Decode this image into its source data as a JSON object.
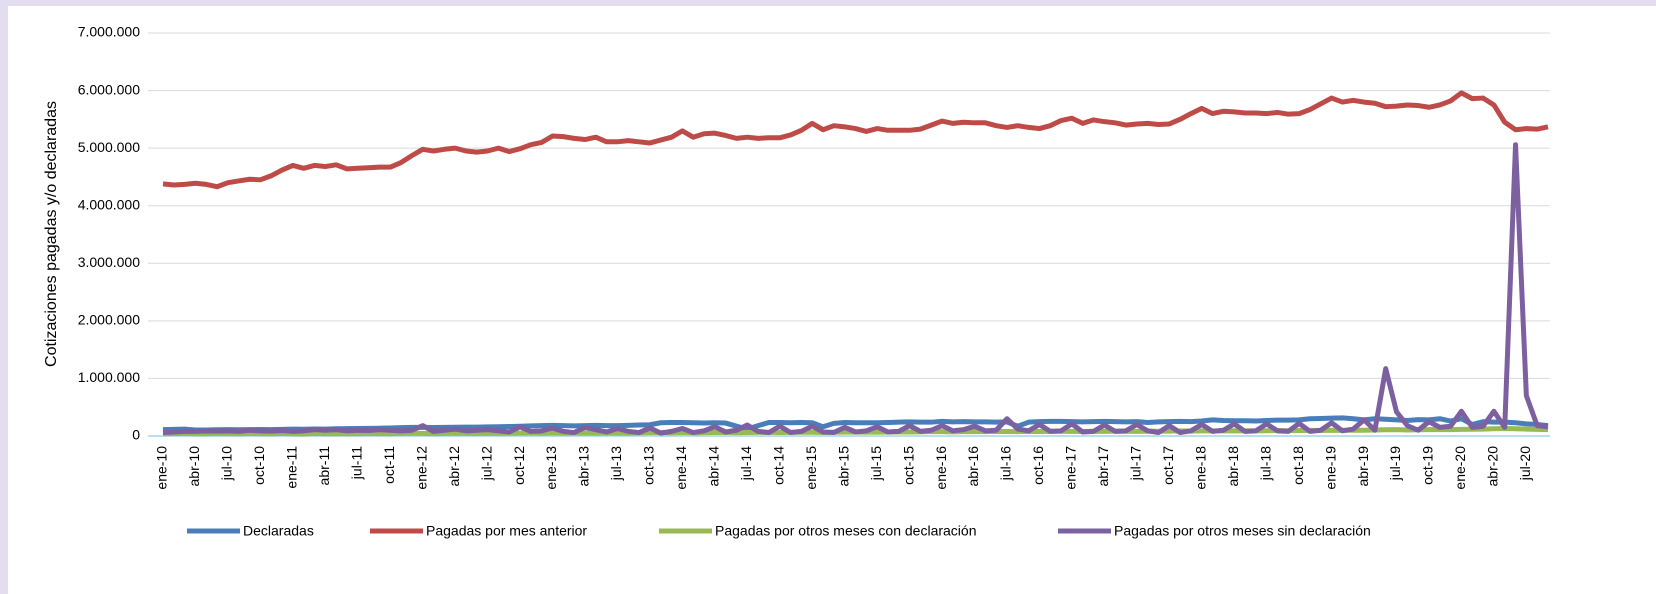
{
  "chart_data": {
    "type": "line",
    "y_label": "Cotizaciones pagadas y/o declaradas",
    "categories": [
      "ene-10",
      null,
      null,
      "abr-10",
      null,
      null,
      "jul-10",
      null,
      null,
      "oct-10",
      null,
      null,
      "ene-11",
      null,
      null,
      "abr-11",
      null,
      null,
      "jul-11",
      null,
      null,
      "oct-11",
      null,
      null,
      "ene-12",
      null,
      null,
      "abr-12",
      null,
      null,
      "jul-12",
      null,
      null,
      "oct-12",
      null,
      null,
      "ene-13",
      null,
      null,
      "abr-13",
      null,
      null,
      "jul-13",
      null,
      null,
      "oct-13",
      null,
      null,
      "ene-14",
      null,
      null,
      "abr-14",
      null,
      null,
      "jul-14",
      null,
      null,
      "oct-14",
      null,
      null,
      "ene-15",
      null,
      null,
      "abr-15",
      null,
      null,
      "jul-15",
      null,
      null,
      "oct-15",
      null,
      null,
      "ene-16",
      null,
      null,
      "abr-16",
      null,
      null,
      "jul-16",
      null,
      null,
      "oct-16",
      null,
      null,
      "ene-17",
      null,
      null,
      "abr-17",
      null,
      null,
      "jul-17",
      null,
      null,
      "oct-17",
      null,
      null,
      "ene-18",
      null,
      null,
      "abr-18",
      null,
      null,
      "jul-18",
      null,
      null,
      "oct-18",
      null,
      null,
      "ene-19",
      null,
      null,
      "abr-19",
      null,
      null,
      "jul-19",
      null,
      null,
      "oct-19",
      null,
      null,
      "ene-20",
      null,
      null,
      "abr-20",
      null,
      null,
      "jul-20",
      null,
      null
    ],
    "series": [
      {
        "name": "Declaradas",
        "color": "#4a7ebb",
        "values": [
          110000,
          115000,
          120000,
          105000,
          105000,
          108000,
          110000,
          108000,
          110000,
          112000,
          110000,
          115000,
          120000,
          118000,
          122000,
          120000,
          125000,
          128000,
          130000,
          132000,
          135000,
          140000,
          145000,
          150000,
          150000,
          148000,
          150000,
          152000,
          155000,
          155000,
          158000,
          160000,
          165000,
          170000,
          175000,
          180000,
          185000,
          180000,
          175000,
          180000,
          185000,
          180000,
          180000,
          185000,
          190000,
          195000,
          230000,
          235000,
          235000,
          230000,
          225000,
          230000,
          225000,
          170000,
          120000,
          180000,
          235000,
          235000,
          230000,
          235000,
          230000,
          160000,
          220000,
          235000,
          230000,
          230000,
          230000,
          235000,
          240000,
          245000,
          240000,
          240000,
          255000,
          245000,
          250000,
          245000,
          245000,
          240000,
          245000,
          170000,
          240000,
          250000,
          255000,
          255000,
          250000,
          245000,
          250000,
          255000,
          250000,
          245000,
          250000,
          235000,
          245000,
          250000,
          255000,
          250000,
          260000,
          280000,
          270000,
          265000,
          265000,
          260000,
          270000,
          275000,
          275000,
          280000,
          300000,
          305000,
          310000,
          315000,
          300000,
          280000,
          300000,
          290000,
          280000,
          270000,
          285000,
          280000,
          300000,
          260000,
          300000,
          200000,
          250000,
          240000,
          240000,
          230000,
          210000,
          200000,
          180000
        ]
      },
      {
        "name": "Pagadas por mes anterior",
        "color": "#be4b48",
        "values": [
          4380000,
          4360000,
          4370000,
          4390000,
          4370000,
          4330000,
          4400000,
          4430000,
          4460000,
          4450000,
          4520000,
          4620000,
          4700000,
          4650000,
          4700000,
          4680000,
          4710000,
          4640000,
          4650000,
          4660000,
          4670000,
          4670000,
          4750000,
          4870000,
          4980000,
          4950000,
          4980000,
          5000000,
          4950000,
          4930000,
          4950000,
          5000000,
          4940000,
          4990000,
          5060000,
          5100000,
          5210000,
          5200000,
          5170000,
          5150000,
          5190000,
          5110000,
          5110000,
          5130000,
          5110000,
          5090000,
          5140000,
          5190000,
          5300000,
          5190000,
          5250000,
          5260000,
          5220000,
          5170000,
          5190000,
          5170000,
          5180000,
          5180000,
          5230000,
          5310000,
          5430000,
          5320000,
          5390000,
          5370000,
          5340000,
          5290000,
          5340000,
          5310000,
          5310000,
          5310000,
          5330000,
          5400000,
          5470000,
          5430000,
          5450000,
          5440000,
          5440000,
          5390000,
          5360000,
          5390000,
          5360000,
          5340000,
          5390000,
          5480000,
          5520000,
          5430000,
          5490000,
          5460000,
          5440000,
          5400000,
          5420000,
          5430000,
          5410000,
          5420000,
          5500000,
          5600000,
          5690000,
          5600000,
          5640000,
          5630000,
          5610000,
          5610000,
          5600000,
          5620000,
          5590000,
          5600000,
          5670000,
          5770000,
          5870000,
          5800000,
          5830000,
          5800000,
          5780000,
          5720000,
          5730000,
          5750000,
          5740000,
          5710000,
          5750000,
          5820000,
          5960000,
          5860000,
          5870000,
          5750000,
          5450000,
          5320000,
          5340000,
          5330000,
          5370000
        ]
      },
      {
        "name": "Pagadas por otros meses con declaración",
        "color": "#98b954",
        "values": [
          40000,
          42000,
          45000,
          40000,
          38000,
          45000,
          42000,
          40000,
          45000,
          42000,
          40000,
          45000,
          40000,
          35000,
          45000,
          40000,
          38000,
          42000,
          40000,
          45000,
          42000,
          40000,
          45000,
          50000,
          45000,
          42000,
          45000,
          50000,
          48000,
          45000,
          50000,
          48000,
          50000,
          52000,
          55000,
          50000,
          55000,
          50000,
          52000,
          55000,
          50000,
          55000,
          52000,
          50000,
          55000,
          58000,
          60000,
          55000,
          60000,
          55000,
          58000,
          60000,
          62000,
          58000,
          60000,
          62000,
          65000,
          60000,
          65000,
          68000,
          65000,
          60000,
          65000,
          68000,
          70000,
          65000,
          70000,
          68000,
          72000,
          70000,
          72000,
          75000,
          75000,
          72000,
          75000,
          78000,
          75000,
          80000,
          78000,
          75000,
          80000,
          78000,
          80000,
          82000,
          80000,
          78000,
          82000,
          80000,
          85000,
          82000,
          80000,
          85000,
          82000,
          85000,
          88000,
          85000,
          88000,
          90000,
          88000,
          92000,
          90000,
          88000,
          92000,
          95000,
          92000,
          95000,
          98000,
          95000,
          100000,
          98000,
          102000,
          100000,
          105000,
          108000,
          110000,
          105000,
          108000,
          110000,
          112000,
          110000,
          115000,
          118000,
          120000,
          125000,
          130000,
          125000,
          120000,
          115000,
          110000
        ]
      },
      {
        "name": "Pagadas por otros meses sin declaración",
        "color": "#7d60a0",
        "values": [
          60000,
          70000,
          80000,
          80000,
          90000,
          85000,
          90000,
          80000,
          100000,
          90000,
          85000,
          95000,
          80000,
          90000,
          110000,
          100000,
          110000,
          90000,
          100000,
          95000,
          110000,
          100000,
          90000,
          100000,
          180000,
          80000,
          100000,
          120000,
          90000,
          100000,
          110000,
          90000,
          70000,
          160000,
          80000,
          90000,
          140000,
          80000,
          60000,
          150000,
          110000,
          70000,
          130000,
          80000,
          60000,
          140000,
          50000,
          80000,
          130000,
          60000,
          90000,
          160000,
          70000,
          100000,
          190000,
          80000,
          60000,
          170000,
          60000,
          80000,
          170000,
          70000,
          60000,
          150000,
          70000,
          90000,
          160000,
          70000,
          80000,
          180000,
          80000,
          100000,
          180000,
          90000,
          110000,
          170000,
          90000,
          100000,
          300000,
          120000,
          90000,
          200000,
          80000,
          90000,
          210000,
          70000,
          80000,
          190000,
          80000,
          90000,
          200000,
          90000,
          60000,
          180000,
          60000,
          90000,
          200000,
          80000,
          100000,
          210000,
          80000,
          90000,
          210000,
          90000,
          80000,
          220000,
          80000,
          100000,
          230000,
          90000,
          120000,
          280000,
          100000,
          1170000,
          420000,
          180000,
          100000,
          250000,
          150000,
          170000,
          430000,
          150000,
          170000,
          430000,
          150000,
          5060000,
          700000,
          180000,
          160000
        ]
      }
    ],
    "ylim": [
      0,
      7000000
    ],
    "yticks": [
      0,
      {
        "value": 1000000,
        "label": "1.000.000"
      },
      {
        "value": 2000000,
        "label": "2.000.000"
      },
      {
        "value": 3000000,
        "label": "3.000.000"
      },
      {
        "value": 4000000,
        "label": "4.000.000"
      },
      {
        "value": 5000000,
        "label": "5.000.000"
      },
      {
        "value": 6000000,
        "label": "6.000.000"
      },
      {
        "value": 7000000,
        "label": "7.000.000"
      }
    ],
    "grid": true,
    "legend": "bottom"
  }
}
